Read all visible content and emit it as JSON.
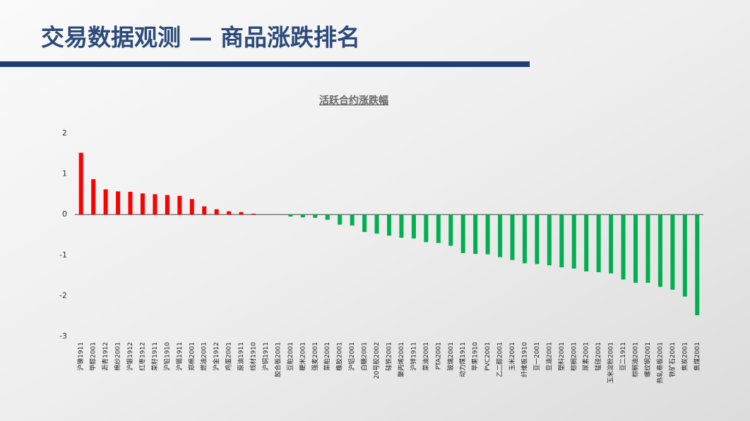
{
  "header": {
    "title": "交易数据观测 — 商品涨跌排名"
  },
  "chart_data": {
    "type": "bar",
    "title": "活跃合约涨跌幅",
    "categories": [
      "沪镍1911",
      "甲醇2001",
      "沥青1912",
      "棉纱2001",
      "沪银1912",
      "红枣1912",
      "菜籽1911",
      "沪铅1910",
      "沪锡1911",
      "郑棉2001",
      "燃油2001",
      "沪金1912",
      "鸡蛋2001",
      "原油1911",
      "线材1910",
      "沪铜1911",
      "胶合板2001",
      "豆粕2001",
      "粳米2001",
      "强麦2001",
      "菜粕2001",
      "橡胶2001",
      "沪铝2001",
      "白糖2001",
      "20号胶2002",
      "硅铁2001",
      "聚丙烯2001",
      "沪锌1911",
      "菜油2001",
      "PTA2001",
      "玻璃2001",
      "动力煤1911",
      "苹果1910",
      "PVC2001",
      "乙二醇2001",
      "玉米2001",
      "纤维板1910",
      "豆一2001",
      "豆油2001",
      "塑料2001",
      "棕榈2001",
      "尿素2001",
      "锰硅2001",
      "玉米淀粉2001",
      "豆二1911",
      "棕榈油2001",
      "螺纹钢2001",
      "热轧卷板2001",
      "铁矿石2001",
      "焦炭2001",
      "焦煤2001"
    ],
    "values": [
      1.52,
      0.87,
      0.62,
      0.57,
      0.56,
      0.52,
      0.5,
      0.48,
      0.46,
      0.38,
      0.2,
      0.13,
      0.08,
      0.06,
      0.02,
      0,
      0,
      -0.05,
      -0.07,
      -0.08,
      -0.13,
      -0.25,
      -0.27,
      -0.43,
      -0.47,
      -0.52,
      -0.57,
      -0.59,
      -0.68,
      -0.7,
      -0.77,
      -0.95,
      -0.97,
      -0.98,
      -1.05,
      -1.12,
      -1.2,
      -1.22,
      -1.25,
      -1.3,
      -1.33,
      -1.4,
      -1.42,
      -1.45,
      -1.6,
      -1.68,
      -1.68,
      -1.78,
      -1.85,
      -2.02,
      -2.48
    ],
    "positive_color": "#ff0000",
    "negative_color": "#00b050",
    "ylim": [
      -3,
      2
    ],
    "yticks": [
      -3,
      -2,
      -1,
      0,
      1,
      2
    ]
  }
}
